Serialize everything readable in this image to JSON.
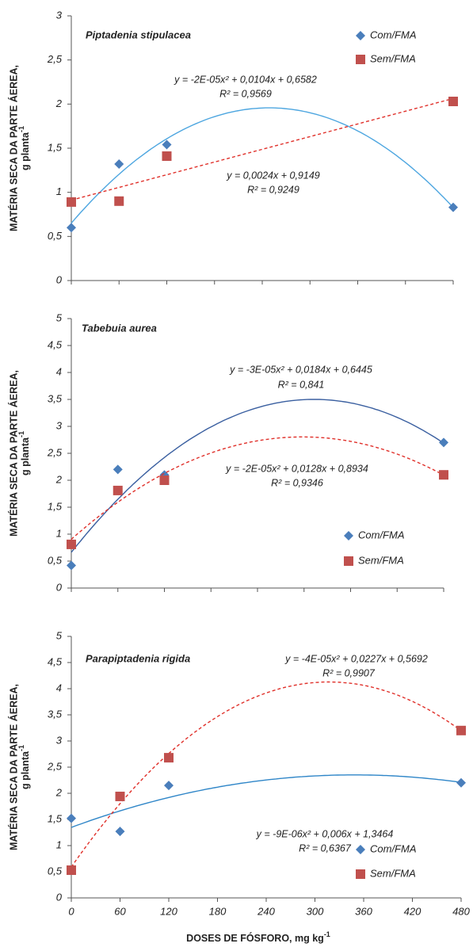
{
  "chart_data": [
    {
      "type": "scatter",
      "title": "Piptadenia stipulacea",
      "ylabel": "MATÉRIA SECA DA PARTE ÁEREA,",
      "ylabel_unit": "g planta",
      "ylabel_unit_sup": "-1",
      "xlim": [
        0,
        480
      ],
      "xticks": [
        0,
        60,
        120,
        180,
        240,
        300,
        360,
        420,
        480
      ],
      "show_xtick_labels": false,
      "ylim": [
        0,
        3
      ],
      "yticks": [
        0,
        {
          "value": 0.5,
          "label": "0,5"
        },
        1,
        {
          "value": 1.5,
          "label": "1,5"
        },
        2,
        {
          "value": 2.5,
          "label": "2,5"
        },
        3
      ],
      "legend": "top-right",
      "series": [
        {
          "name": "Com/FMA",
          "color": "#4a7ebb",
          "marker": "diamond",
          "x": [
            0,
            60,
            120,
            480
          ],
          "values": [
            0.6,
            1.32,
            1.54,
            0.83
          ],
          "trendline": "poly2",
          "trendline_color": "#4da6e0",
          "trendline_dashed": false,
          "equation": "y = -2E-05x² + 0,0104x + 0,6582",
          "r_squared": "R² = 0,9569"
        },
        {
          "name": "Sem/FMA",
          "color": "#c0504d",
          "marker": "square",
          "x": [
            0,
            60,
            120,
            480
          ],
          "values": [
            0.89,
            0.9,
            1.41,
            2.03
          ],
          "trendline": "linear",
          "trendline_color": "#e0302a",
          "trendline_dashed": true,
          "equation": "y = 0,0024x + 0,9149",
          "r_squared": "R² = 0,9249"
        }
      ]
    },
    {
      "type": "scatter",
      "title": "Tabebuia aurea",
      "ylabel": "MATÉRIA SECA DA PARTE ÁEREA,",
      "ylabel_unit": "g planta",
      "ylabel_unit_sup": "-1",
      "xlim": [
        0,
        480
      ],
      "xticks": [
        0,
        60,
        120,
        180,
        240,
        300,
        360,
        420,
        480
      ],
      "show_xtick_labels": false,
      "ylim": [
        0,
        5
      ],
      "yticks": [
        0,
        {
          "value": 0.5,
          "label": "0,5"
        },
        1,
        {
          "value": 1.5,
          "label": "1,5"
        },
        2,
        {
          "value": 2.5,
          "label": "2,5"
        },
        3,
        {
          "value": 3.5,
          "label": "3,5"
        },
        4,
        {
          "value": 4.5,
          "label": "4,5"
        },
        5
      ],
      "legend": "right",
      "series": [
        {
          "name": "Com/FMA",
          "color": "#4a7ebb",
          "marker": "diamond",
          "x": [
            0,
            60,
            120,
            480
          ],
          "values": [
            0.42,
            2.2,
            2.1,
            2.7
          ],
          "trendline": "poly2",
          "trendline_color": "#3a5fa0",
          "trendline_dashed": false,
          "equation": "y = -3E-05x² + 0,0184x + 0,6445",
          "r_squared": "R² = 0,841"
        },
        {
          "name": "Sem/FMA",
          "color": "#c0504d",
          "marker": "square",
          "x": [
            0,
            60,
            120,
            480
          ],
          "values": [
            0.81,
            1.81,
            2.0,
            2.1
          ],
          "trendline": "poly2",
          "trendline_color": "#e0302a",
          "trendline_dashed": true,
          "equation": "y = -2E-05x² + 0,0128x + 0,8934",
          "r_squared": "R² = 0,9346"
        }
      ]
    },
    {
      "type": "scatter",
      "title": "Parapiptadenia rigida",
      "ylabel": "MATÉRIA SECA DA PARTE ÁEREA,",
      "ylabel_unit": "g planta",
      "ylabel_unit_sup": "-1",
      "xlabel": "DOSES DE FÓSFORO, mg kg",
      "xlabel_sup": "-1",
      "xlim": [
        0,
        480
      ],
      "xticks": [
        0,
        60,
        120,
        180,
        240,
        300,
        360,
        420,
        480
      ],
      "show_xtick_labels": true,
      "ylim": [
        0,
        5
      ],
      "yticks": [
        0,
        {
          "value": 0.5,
          "label": "0,5"
        },
        1,
        {
          "value": 1.5,
          "label": "1,5"
        },
        2,
        {
          "value": 2.5,
          "label": "2,5"
        },
        3,
        {
          "value": 3.5,
          "label": "3,5"
        },
        4,
        {
          "value": 4.5,
          "label": "4,5"
        },
        5
      ],
      "legend": "bottom-right",
      "series": [
        {
          "name": "Com/FMA",
          "color": "#4a7ebb",
          "marker": "diamond",
          "x": [
            0,
            60,
            120,
            480
          ],
          "values": [
            1.52,
            1.27,
            2.15,
            2.2
          ],
          "trendline": "poly2",
          "trendline_color": "#2f86c8",
          "trendline_dashed": false,
          "equation": "y = -9E-06x² + 0,006x + 1,3464",
          "r_squared": "R² = 0,6367"
        },
        {
          "name": "Sem/FMA",
          "color": "#c0504d",
          "marker": "square",
          "x": [
            0,
            60,
            120,
            480
          ],
          "values": [
            0.53,
            1.94,
            2.68,
            3.2
          ],
          "trendline": "poly2",
          "trendline_color": "#e0302a",
          "trendline_dashed": true,
          "equation": "y = -4E-05x² + 0,0227x + 0,5692",
          "r_squared": "R² = 0,9907"
        }
      ]
    }
  ]
}
